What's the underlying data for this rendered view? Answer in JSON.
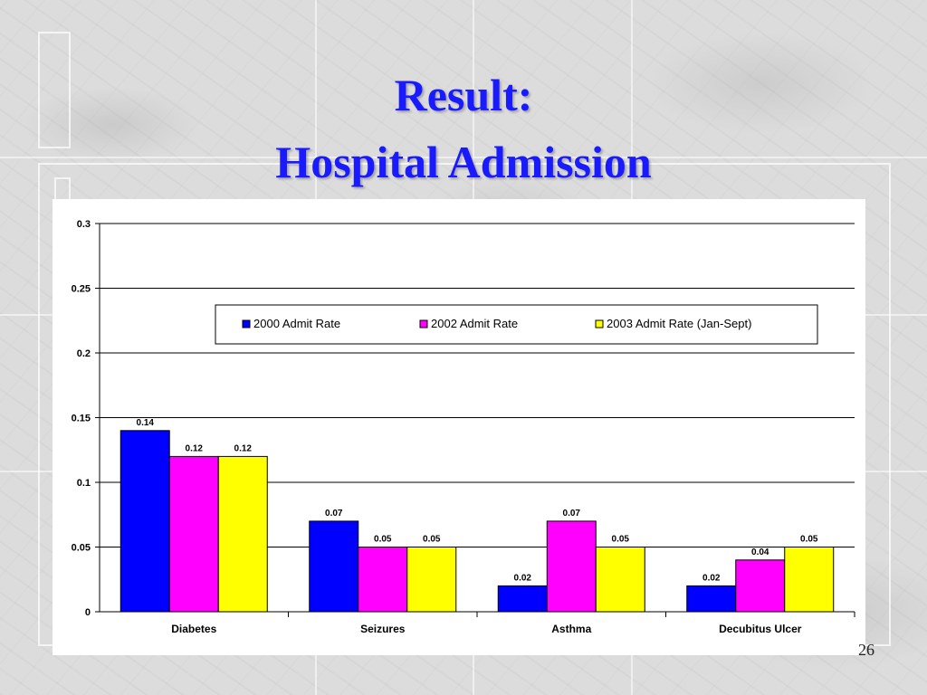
{
  "slide": {
    "title_line1": "Result:",
    "title_line2": "Hospital Admission",
    "page_number": "26"
  },
  "chart_data": {
    "type": "bar",
    "categories": [
      "Diabetes",
      "Seizures",
      "Asthma",
      "Decubitus Ulcer"
    ],
    "series": [
      {
        "name": "2000 Admit Rate",
        "color": "#0000ff",
        "values": [
          0.14,
          0.07,
          0.02,
          0.02
        ],
        "labels": [
          "0.14",
          "0.07",
          "0.02",
          "0.02"
        ]
      },
      {
        "name": "2002 Admit Rate",
        "color": "#ff00ff",
        "values": [
          0.12,
          0.05,
          0.07,
          0.04
        ],
        "labels": [
          "0.12",
          "0.05",
          "0.07",
          "0.04"
        ]
      },
      {
        "name": "2003 Admit Rate (Jan-Sept)",
        "color": "#ffff00",
        "values": [
          0.12,
          0.05,
          0.05,
          0.05
        ],
        "labels": [
          "0.12",
          "0.05",
          "0.05",
          "0.05"
        ]
      }
    ],
    "ylim": [
      0,
      0.3
    ],
    "yticks": [
      0,
      0.05,
      0.1,
      0.15,
      0.2,
      0.25,
      0.3
    ],
    "ytick_labels": [
      "0",
      "0.05",
      "0.1",
      "0.15",
      "0.2",
      "0.25",
      "0.3"
    ],
    "grid": true,
    "legend_position": "top-center",
    "title": "",
    "xlabel": "",
    "ylabel": ""
  }
}
